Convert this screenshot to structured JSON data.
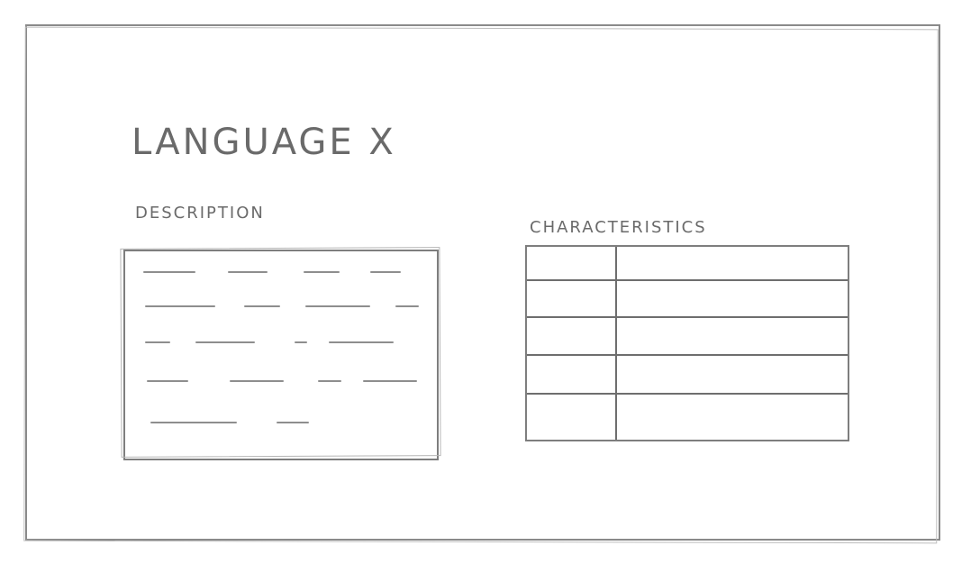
{
  "page": {
    "title": "LANGUAGE X"
  },
  "description": {
    "label": "DESCRIPTION"
  },
  "characteristics": {
    "label": "CHARACTERISTICS",
    "rows": 5,
    "columns": 2
  }
}
